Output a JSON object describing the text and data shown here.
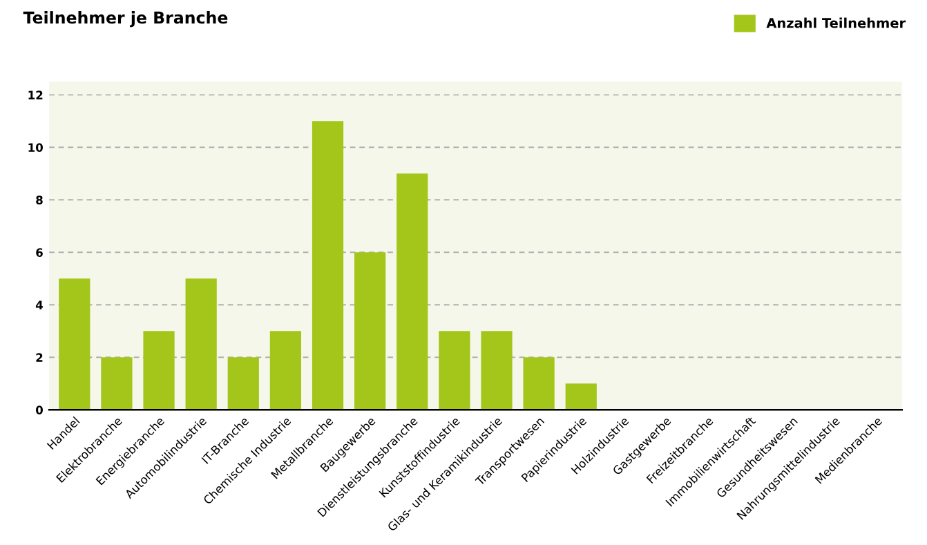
{
  "chart_data": {
    "type": "bar",
    "title": "Teilnehmer je Branche",
    "categories": [
      "Handel",
      "Elektrobranche",
      "Energiebranche",
      "Automobilindustrie",
      "IT-Branche",
      "Chemische Industrie",
      "Metallbranche",
      "Baugewerbe",
      "Dienstleistungsbranche",
      "Kunststoffindustrie",
      "Glas- und Keramikindustrie",
      "Transportwesen",
      "Papierindustrie",
      "Holzindustrie",
      "Gastgewerbe",
      "Freizeitbranche",
      "Immobilienwirtschaft",
      "Gesundheitswesen",
      "Nahrungsmittelindustrie",
      "Medienbranche"
    ],
    "series": [
      {
        "name": "Anzahl Teilnehmer",
        "color": "#a4c61a",
        "values": [
          5,
          2,
          3,
          5,
          2,
          3,
          11,
          6,
          9,
          3,
          3,
          2,
          1,
          0,
          0,
          0,
          0,
          0,
          0,
          0
        ]
      }
    ],
    "ylim": [
      0,
      12.5
    ],
    "yticks": [
      0,
      2,
      4,
      6,
      8,
      10,
      12
    ],
    "grid": "y",
    "legend": "top right"
  }
}
